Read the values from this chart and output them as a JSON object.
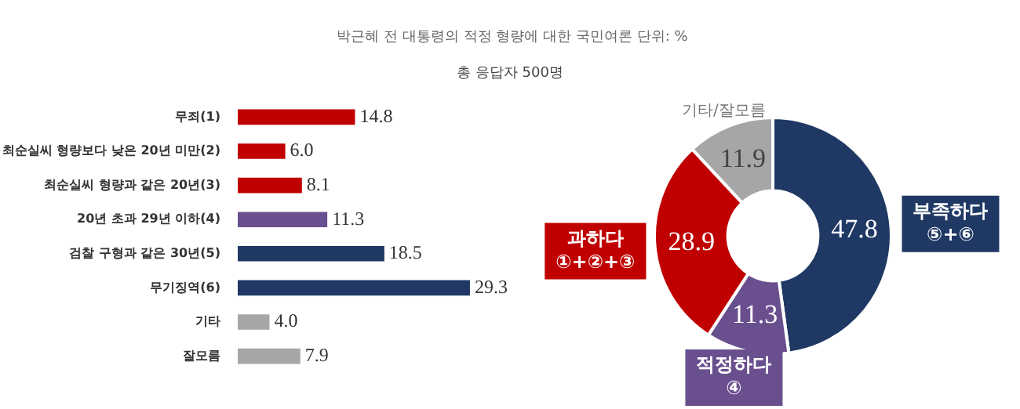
{
  "chart_data": [
    {
      "type": "bar",
      "orientation": "horizontal",
      "title": "박근혜 전 대통령의 적정 형량에 대한 국민여론",
      "subtitle": "총 응답자 500명",
      "annotations": [
        "단위: %"
      ],
      "categories": [
        "무죄(1)",
        "최순실씨 형량보다 낮은 20년 미만(2)",
        "최순실씨 형량과 같은 20년(3)",
        "20년 초과 29년 이하(4)",
        "검찰 구형과 같은 30년(5)",
        "무기징역(6)",
        "기타",
        "잘모름"
      ],
      "values": [
        14.8,
        6.0,
        8.1,
        11.3,
        18.5,
        29.3,
        4.0,
        7.9
      ],
      "colors": [
        "#c00000",
        "#c00000",
        "#c00000",
        "#6a4f8e",
        "#1f3864",
        "#1f3864",
        "#a6a6a6",
        "#a6a6a6"
      ],
      "value_labels": [
        "14.8",
        "6.0",
        "8.1",
        "11.3",
        "18.5",
        "29.3",
        "4.0",
        "7.9"
      ],
      "legend": false
    },
    {
      "type": "donut",
      "categories": [
        "부족하다 ⑤+⑥",
        "적정하다 ④",
        "과하다 ①+②+③",
        "기타/잘모름"
      ],
      "values": [
        47.8,
        11.3,
        28.9,
        11.9
      ],
      "colors": [
        "#1f3864",
        "#6a4f8e",
        "#c00000",
        "#a6a6a6"
      ],
      "data_labels": true,
      "legend": false
    }
  ]
}
